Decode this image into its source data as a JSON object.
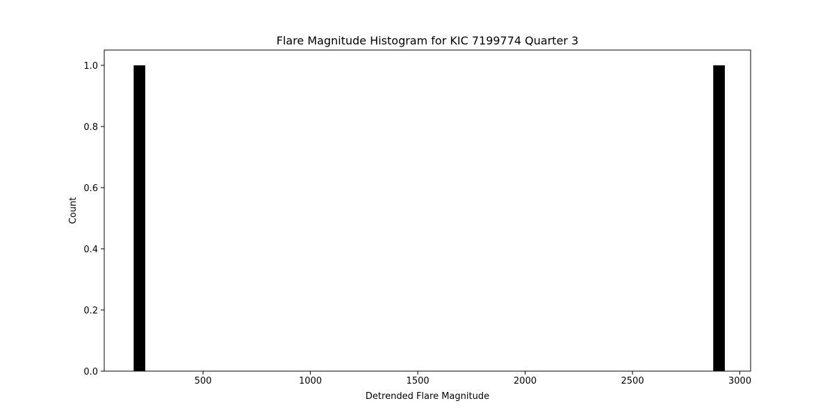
{
  "chart_data": {
    "type": "bar",
    "title": "Flare Magnitude Histogram for KIC 7199774 Quarter 3",
    "xlabel": "Detrended Flare Magnitude",
    "ylabel": "Count",
    "xlim": [
      40,
      3050
    ],
    "ylim": [
      0,
      1.05
    ],
    "xticks": [
      500,
      1000,
      1500,
      2000,
      2500,
      3000
    ],
    "yticks": [
      0.0,
      0.2,
      0.4,
      0.6,
      0.8,
      1.0
    ],
    "xtick_labels": [
      "500",
      "1000",
      "1500",
      "2000",
      "2500",
      "3000"
    ],
    "ytick_labels": [
      "0.0",
      "0.2",
      "0.4",
      "0.6",
      "0.8",
      "1.0"
    ],
    "bars": [
      {
        "x_start": 177,
        "x_end": 231,
        "count": 1
      },
      {
        "x_start": 2876,
        "x_end": 2930,
        "count": 1
      }
    ],
    "bar_color": "#000000",
    "grid": false
  }
}
